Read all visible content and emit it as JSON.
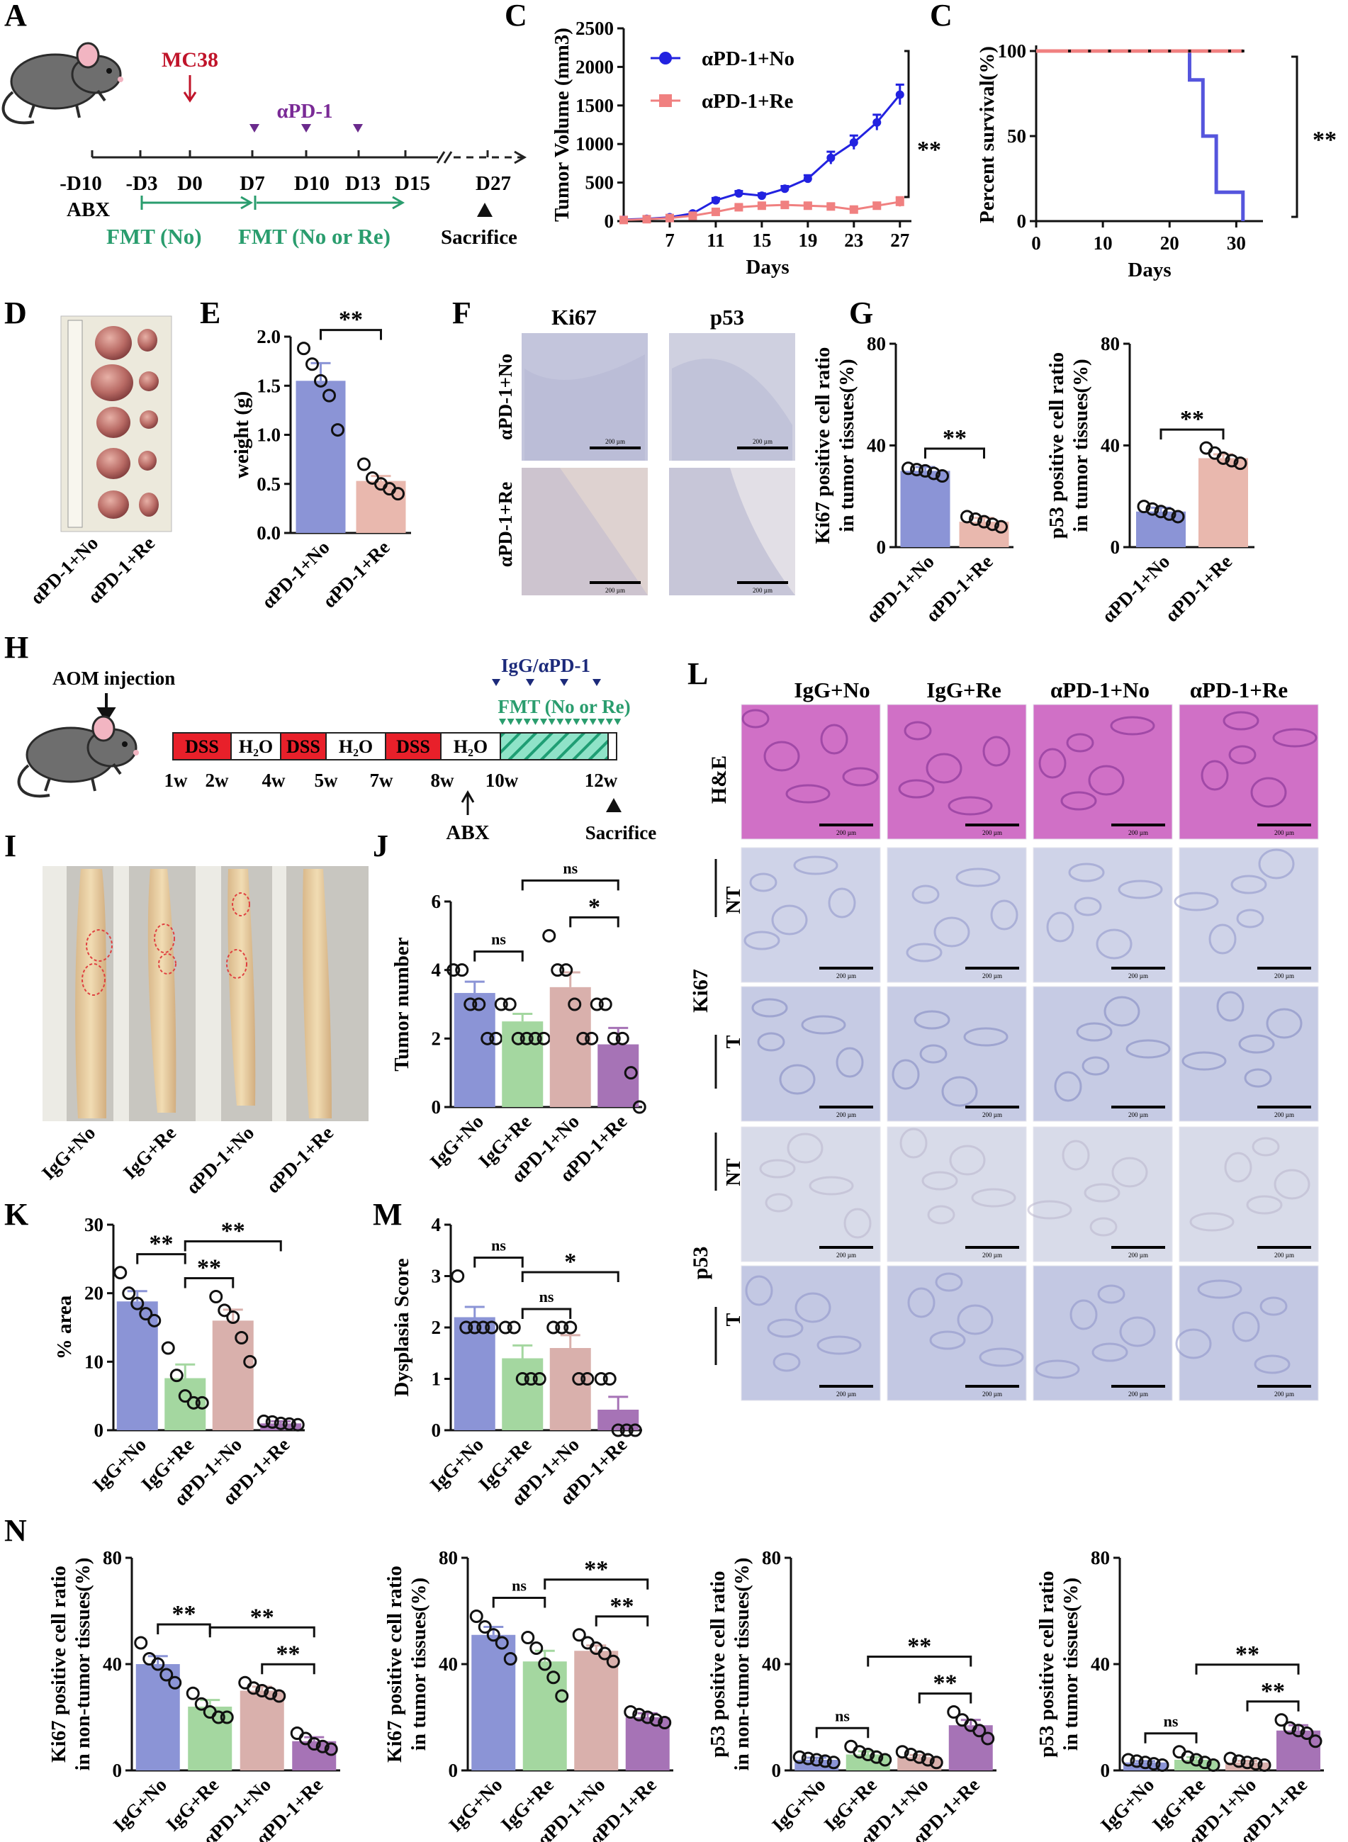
{
  "panels": {
    "A": {
      "label": "A",
      "mc38": "MC38",
      "apd1": "αPD-1",
      "days": [
        "-D10",
        "-D3",
        "D0",
        "D7",
        "D10",
        "D13",
        "D15",
        "D27"
      ],
      "abx": "ABX",
      "fmt_no": "FMT (No)",
      "fmt_no_re": "FMT (No or Re)",
      "sacrifice": "Sacrifice"
    },
    "D": {
      "label": "D",
      "groups": [
        "αPD-1+No",
        "αPD-1+Re"
      ]
    },
    "F": {
      "label": "F",
      "cols": [
        "Ki67",
        "p53"
      ],
      "rows": [
        "αPD-1+No",
        "αPD-1+Re"
      ],
      "scale": "200 µm"
    },
    "H": {
      "label": "H",
      "aom": "AOM injection",
      "blocks": [
        "DSS",
        "H₂O",
        "DSS",
        "H₂O",
        "DSS",
        "H₂O"
      ],
      "weeks": [
        "1w",
        "2w",
        "4w",
        "5w",
        "7w",
        "8w",
        "10w",
        "12w"
      ],
      "igg": "IgG/αPD-1",
      "fmt": "FMT (No or Re)",
      "abx": "ABX",
      "sacrifice": "Sacrifice"
    },
    "I": {
      "label": "I",
      "groups": [
        "IgG+No",
        "IgG+Re",
        "αPD-1+No",
        "αPD-1+Re"
      ]
    },
    "L": {
      "label": "L",
      "cols": [
        "IgG+No",
        "IgG+Re",
        "αPD-1+No",
        "αPD-1+Re"
      ],
      "stain_he": "H&E",
      "stain_ki": "Ki67",
      "stain_p53": "p53",
      "nt": "NT",
      "t": "T",
      "scale": "200 µm"
    },
    "N": {
      "label": "N"
    }
  },
  "chart_data": [
    {
      "id": "B",
      "type": "line",
      "panel": "B",
      "xlabel": "Days",
      "ylabel": "Tumor Volume (mm3)",
      "xticks": [
        7,
        11,
        15,
        19,
        23,
        27
      ],
      "ylim": [
        0,
        2500
      ],
      "yticks": [
        0,
        500,
        1000,
        1500,
        2000,
        2500
      ],
      "x": [
        3,
        5,
        7,
        9,
        11,
        13,
        15,
        17,
        19,
        21,
        23,
        25,
        27
      ],
      "series": [
        {
          "name": "αPD-1+No",
          "color": "#2222e0",
          "marker": "circle",
          "values": [
            20,
            30,
            50,
            100,
            270,
            360,
            330,
            420,
            550,
            820,
            1020,
            1280,
            1640
          ],
          "err": [
            8,
            8,
            10,
            15,
            30,
            30,
            30,
            35,
            45,
            80,
            90,
            100,
            130
          ]
        },
        {
          "name": "αPD-1+Re",
          "color": "#f08080",
          "marker": "square",
          "values": [
            15,
            25,
            40,
            70,
            120,
            180,
            200,
            210,
            200,
            190,
            150,
            200,
            250
          ],
          "err": [
            5,
            5,
            8,
            10,
            20,
            25,
            30,
            35,
            30,
            35,
            30,
            40,
            60
          ]
        }
      ],
      "significance": "**"
    },
    {
      "id": "C",
      "type": "line",
      "panel": "C",
      "xlabel": "Days",
      "ylabel": "Percent survival(%)",
      "xticks": [
        0,
        10,
        20,
        30
      ],
      "yticks": [
        0,
        50,
        100
      ],
      "ylim": [
        0,
        100
      ],
      "series": [
        {
          "name": "αPD-1+No",
          "color": "#5555dd",
          "steps": [
            [
              0,
              100
            ],
            [
              23,
              100
            ],
            [
              23,
              83
            ],
            [
              25,
              83
            ],
            [
              25,
              50
            ],
            [
              27,
              50
            ],
            [
              27,
              17
            ],
            [
              31,
              17
            ],
            [
              31,
              0
            ]
          ]
        },
        {
          "name": "αPD-1+Re",
          "color": "#f08080",
          "steps": [
            [
              0,
              100
            ],
            [
              31,
              100
            ]
          ]
        }
      ],
      "significance": "**"
    },
    {
      "id": "E",
      "type": "bar",
      "panel": "E",
      "ylabel": "weight (g)",
      "ylim": [
        0,
        2.0
      ],
      "yticks": [
        0.0,
        0.5,
        1.0,
        1.5,
        2.0
      ],
      "ytick_labels": [
        "0.0",
        "0.5",
        "1.0",
        "1.5",
        "2.0"
      ],
      "categories": [
        "αPD-1+No",
        "αPD-1+Re"
      ],
      "values": [
        1.55,
        0.53
      ],
      "err": [
        0.18,
        0.05
      ],
      "colors": [
        "#8b94d6",
        "#e9b8ae"
      ],
      "points": [
        [
          1.88,
          1.72,
          1.55,
          1.4,
          1.05
        ],
        [
          0.7,
          0.56,
          0.5,
          0.45,
          0.4
        ]
      ],
      "comparisons": [
        {
          "a": 0,
          "b": 1,
          "label": "**"
        }
      ]
    },
    {
      "id": "G1",
      "type": "bar",
      "panel": "G",
      "ylabel": "Ki67 positive cell ratio in tumor tissues(%)",
      "ylim": [
        0,
        80
      ],
      "yticks": [
        0,
        40,
        80
      ],
      "categories": [
        "αPD-1+No",
        "αPD-1+Re"
      ],
      "values": [
        30,
        10
      ],
      "err": [
        1.5,
        1.5
      ],
      "colors": [
        "#8b94d6",
        "#e9b8ae"
      ],
      "points": [
        [
          31,
          30.5,
          30,
          29,
          28
        ],
        [
          12,
          11,
          10,
          9,
          8
        ]
      ],
      "comparisons": [
        {
          "a": 0,
          "b": 1,
          "label": "**"
        }
      ]
    },
    {
      "id": "G2",
      "type": "bar",
      "panel": "G",
      "ylabel": "p53 positive cell ratio in tumor tissues(%)",
      "ylim": [
        0,
        80
      ],
      "yticks": [
        0,
        40,
        80
      ],
      "categories": [
        "αPD-1+No",
        "αPD-1+Re"
      ],
      "values": [
        14,
        35
      ],
      "err": [
        1.5,
        1.5
      ],
      "colors": [
        "#8b94d6",
        "#e9b8ae"
      ],
      "points": [
        [
          16,
          15,
          14,
          13,
          12
        ],
        [
          39,
          37,
          35,
          34,
          33
        ]
      ],
      "comparisons": [
        {
          "a": 0,
          "b": 1,
          "label": "**"
        }
      ]
    },
    {
      "id": "J",
      "type": "bar",
      "panel": "J",
      "ylabel": "Tumor number",
      "ylim": [
        0,
        6
      ],
      "yticks": [
        0,
        2,
        4,
        6
      ],
      "categories": [
        "IgG+No",
        "IgG+Re",
        "αPD-1+No",
        "αPD-1+Re"
      ],
      "values": [
        3.33,
        2.5,
        3.5,
        1.83
      ],
      "err": [
        0.33,
        0.22,
        0.43,
        0.48
      ],
      "colors": [
        "#8b94d6",
        "#a4d7a0",
        "#d9b0ac",
        "#a673b6"
      ],
      "points": [
        [
          4,
          4,
          3,
          3,
          2,
          2
        ],
        [
          3,
          3,
          2,
          2,
          2,
          2
        ],
        [
          5,
          4,
          4,
          3,
          2,
          2
        ],
        [
          3,
          3,
          2,
          2,
          1,
          0
        ]
      ],
      "comparisons": [
        {
          "a": 0,
          "b": 1,
          "label": "ns"
        },
        {
          "a": 2,
          "b": 3,
          "label": "*"
        },
        {
          "a": 1,
          "b": 3,
          "label": "ns"
        }
      ]
    },
    {
      "id": "K",
      "type": "bar",
      "panel": "K",
      "ylabel": "% area",
      "ylim": [
        0,
        30
      ],
      "yticks": [
        0,
        10,
        20,
        30
      ],
      "categories": [
        "IgG+No",
        "IgG+Re",
        "αPD-1+No",
        "αPD-1+Re"
      ],
      "values": [
        18.8,
        7.6,
        16,
        1.0
      ],
      "err": [
        1.5,
        2.0,
        1.6,
        0.3
      ],
      "colors": [
        "#8b94d6",
        "#a4d7a0",
        "#d9b0ac",
        "#a673b6"
      ],
      "points": [
        [
          23,
          20,
          18.5,
          17,
          16
        ],
        [
          12,
          8,
          5,
          4,
          4
        ],
        [
          19.5,
          17.5,
          16.5,
          13.5,
          10
        ],
        [
          1.3,
          1.2,
          1.0,
          0.9,
          0.8
        ]
      ],
      "comparisons": [
        {
          "a": 0,
          "b": 1,
          "label": "**"
        },
        {
          "a": 1,
          "b": 2,
          "label": "**"
        },
        {
          "a": 1,
          "b": 3,
          "label": "**"
        }
      ]
    },
    {
      "id": "M",
      "type": "bar",
      "panel": "M",
      "ylabel": "Dysplasia Score",
      "ylim": [
        0,
        4
      ],
      "yticks": [
        0,
        1,
        2,
        3,
        4
      ],
      "categories": [
        "IgG+No",
        "IgG+Re",
        "αPD-1+No",
        "αPD-1+Re"
      ],
      "values": [
        2.2,
        1.4,
        1.6,
        0.4
      ],
      "err": [
        0.2,
        0.25,
        0.25,
        0.25
      ],
      "colors": [
        "#8b94d6",
        "#a4d7a0",
        "#d9b0ac",
        "#a673b6"
      ],
      "points": [
        [
          3,
          2,
          2,
          2,
          2
        ],
        [
          2,
          2,
          1,
          1,
          1
        ],
        [
          2,
          2,
          2,
          1,
          1
        ],
        [
          1,
          1,
          0,
          0,
          0
        ]
      ],
      "comparisons": [
        {
          "a": 0,
          "b": 1,
          "label": "ns"
        },
        {
          "a": 1,
          "b": 2,
          "label": "ns"
        },
        {
          "a": 1,
          "b": 3,
          "label": "*"
        }
      ]
    },
    {
      "id": "N1",
      "type": "bar",
      "panel": "N",
      "ylabel": "Ki67 positive cell ratio in non-tumor tissues(%)",
      "ylim": [
        0,
        80
      ],
      "yticks": [
        0,
        40,
        80
      ],
      "categories": [
        "IgG+No",
        "IgG+Re",
        "αPD-1+No",
        "αPD-1+Re"
      ],
      "values": [
        40,
        24,
        30,
        11
      ],
      "err": [
        3,
        2.5,
        1.5,
        1.5
      ],
      "colors": [
        "#8b94d6",
        "#a4d7a0",
        "#d9b0ac",
        "#a673b6"
      ],
      "points": [
        [
          48,
          42,
          40,
          36,
          33
        ],
        [
          29,
          25,
          22,
          20,
          20
        ],
        [
          33,
          31,
          30,
          29,
          28
        ],
        [
          14,
          12,
          10,
          9,
          8
        ]
      ],
      "comparisons": [
        {
          "a": 0,
          "b": 1,
          "label": "**"
        },
        {
          "a": 2,
          "b": 3,
          "label": "**"
        },
        {
          "a": 1,
          "b": 3,
          "label": "**"
        }
      ]
    },
    {
      "id": "N2",
      "type": "bar",
      "panel": "N",
      "ylabel": "Ki67 positive cell ratio in tumor tissues(%)",
      "ylim": [
        0,
        80
      ],
      "yticks": [
        0,
        40,
        80
      ],
      "categories": [
        "IgG+No",
        "IgG+Re",
        "αPD-1+No",
        "αPD-1+Re"
      ],
      "values": [
        51,
        41,
        45,
        20
      ],
      "err": [
        3,
        4,
        2,
        1.5
      ],
      "colors": [
        "#8b94d6",
        "#a4d7a0",
        "#d9b0ac",
        "#a673b6"
      ],
      "points": [
        [
          58,
          54,
          51,
          48,
          42
        ],
        [
          50,
          46,
          40,
          35,
          28
        ],
        [
          51,
          48,
          46,
          44,
          41
        ],
        [
          22,
          21,
          20,
          19,
          18
        ]
      ],
      "comparisons": [
        {
          "a": 0,
          "b": 1,
          "label": "ns"
        },
        {
          "a": 2,
          "b": 3,
          "label": "**"
        },
        {
          "a": 1,
          "b": 3,
          "label": "**"
        }
      ]
    },
    {
      "id": "N3",
      "type": "bar",
      "panel": "N",
      "ylabel": "p53 positive cell ratio in non-tumor tissues(%)",
      "ylim": [
        0,
        80
      ],
      "yticks": [
        0,
        40,
        80
      ],
      "categories": [
        "IgG+No",
        "IgG+Re",
        "αPD-1+No",
        "αPD-1+Re"
      ],
      "values": [
        4,
        6,
        5,
        17
      ],
      "err": [
        0.8,
        1.2,
        0.8,
        2
      ],
      "colors": [
        "#8b94d6",
        "#a4d7a0",
        "#d9b0ac",
        "#a673b6"
      ],
      "points": [
        [
          5,
          4.5,
          4,
          3.5,
          3
        ],
        [
          9,
          7,
          6,
          5,
          4
        ],
        [
          7,
          6,
          5,
          4,
          3
        ],
        [
          22,
          19,
          17,
          15,
          12
        ]
      ],
      "comparisons": [
        {
          "a": 0,
          "b": 1,
          "label": "ns"
        },
        {
          "a": 2,
          "b": 3,
          "label": "**"
        },
        {
          "a": 1,
          "b": 3,
          "label": "**"
        }
      ]
    },
    {
      "id": "N4",
      "type": "bar",
      "panel": "N",
      "ylabel": "p53 positive cell ratio in tumor tissues(%)",
      "ylim": [
        0,
        80
      ],
      "yticks": [
        0,
        40,
        80
      ],
      "categories": [
        "IgG+No",
        "IgG+Re",
        "αPD-1+No",
        "αPD-1+Re"
      ],
      "values": [
        3,
        4,
        3,
        15
      ],
      "err": [
        0.5,
        1,
        0.6,
        2
      ],
      "colors": [
        "#8b94d6",
        "#a4d7a0",
        "#d9b0ac",
        "#a673b6"
      ],
      "points": [
        [
          4,
          3.5,
          3,
          2.5,
          2
        ],
        [
          7,
          5,
          4,
          3,
          2
        ],
        [
          4.5,
          3.5,
          3,
          2.5,
          2
        ],
        [
          19,
          16,
          15,
          14,
          11
        ]
      ],
      "comparisons": [
        {
          "a": 0,
          "b": 1,
          "label": "ns"
        },
        {
          "a": 2,
          "b": 3,
          "label": "**"
        },
        {
          "a": 1,
          "b": 3,
          "label": "**"
        }
      ]
    }
  ]
}
